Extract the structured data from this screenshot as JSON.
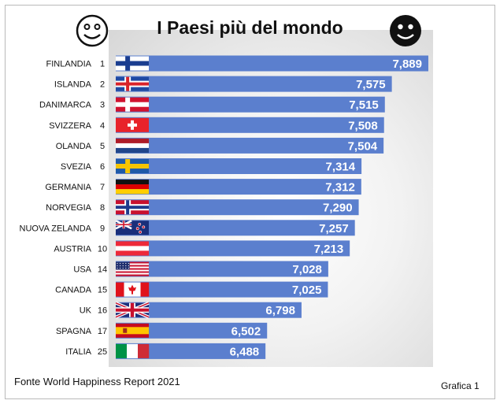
{
  "header": {
    "title": "I Paesi più del mondo",
    "left_icon": "smiley-outline-icon",
    "right_icon": "smiley-filled-icon"
  },
  "footer": {
    "source": "Fonte World Happiness Report 2021",
    "chart_number": "Grafica 1"
  },
  "colors": {
    "bar": "#5b7fce",
    "bar_text": "#ffffff",
    "text": "#111111"
  },
  "chart_data": {
    "type": "bar",
    "orientation": "horizontal",
    "title": "I Paesi più del mondo",
    "categories": [
      "FINLANDIA",
      "ISLANDA",
      "DANIMARCA",
      "SVIZZERA",
      "OLANDA",
      "SVEZIA",
      "GERMANIA",
      "NORVEGIA",
      "NUOVA ZELANDA",
      "AUSTRIA",
      "USA",
      "CANADA",
      "UK",
      "SPAGNA",
      "ITALIA"
    ],
    "ranks": [
      "1",
      "2",
      "3",
      "4",
      "5",
      "6",
      "7",
      "8",
      "9",
      "10",
      "14",
      "15",
      "16",
      "17",
      "25"
    ],
    "flags": [
      "finland-flag-icon",
      "iceland-flag-icon",
      "denmark-flag-icon",
      "switzerland-flag-icon",
      "netherlands-flag-icon",
      "sweden-flag-icon",
      "germany-flag-icon",
      "norway-flag-icon",
      "new-zealand-flag-icon",
      "austria-flag-icon",
      "usa-flag-icon",
      "canada-flag-icon",
      "uk-flag-icon",
      "spain-flag-icon",
      "italy-flag-icon"
    ],
    "values": [
      7.889,
      7.575,
      7.515,
      7.508,
      7.504,
      7.314,
      7.312,
      7.29,
      7.257,
      7.213,
      7.028,
      7.025,
      6.798,
      6.502,
      6.488
    ],
    "value_labels": [
      "7,889",
      "7,575",
      "7,515",
      "7,508",
      "7,504",
      "7,314",
      "7,312",
      "7,290",
      "7,257",
      "7,213",
      "7,028",
      "7,025",
      "6,798",
      "6,502",
      "6,488"
    ],
    "xlim": [
      5.2,
      7.95
    ],
    "grid": false,
    "legend": "none"
  }
}
